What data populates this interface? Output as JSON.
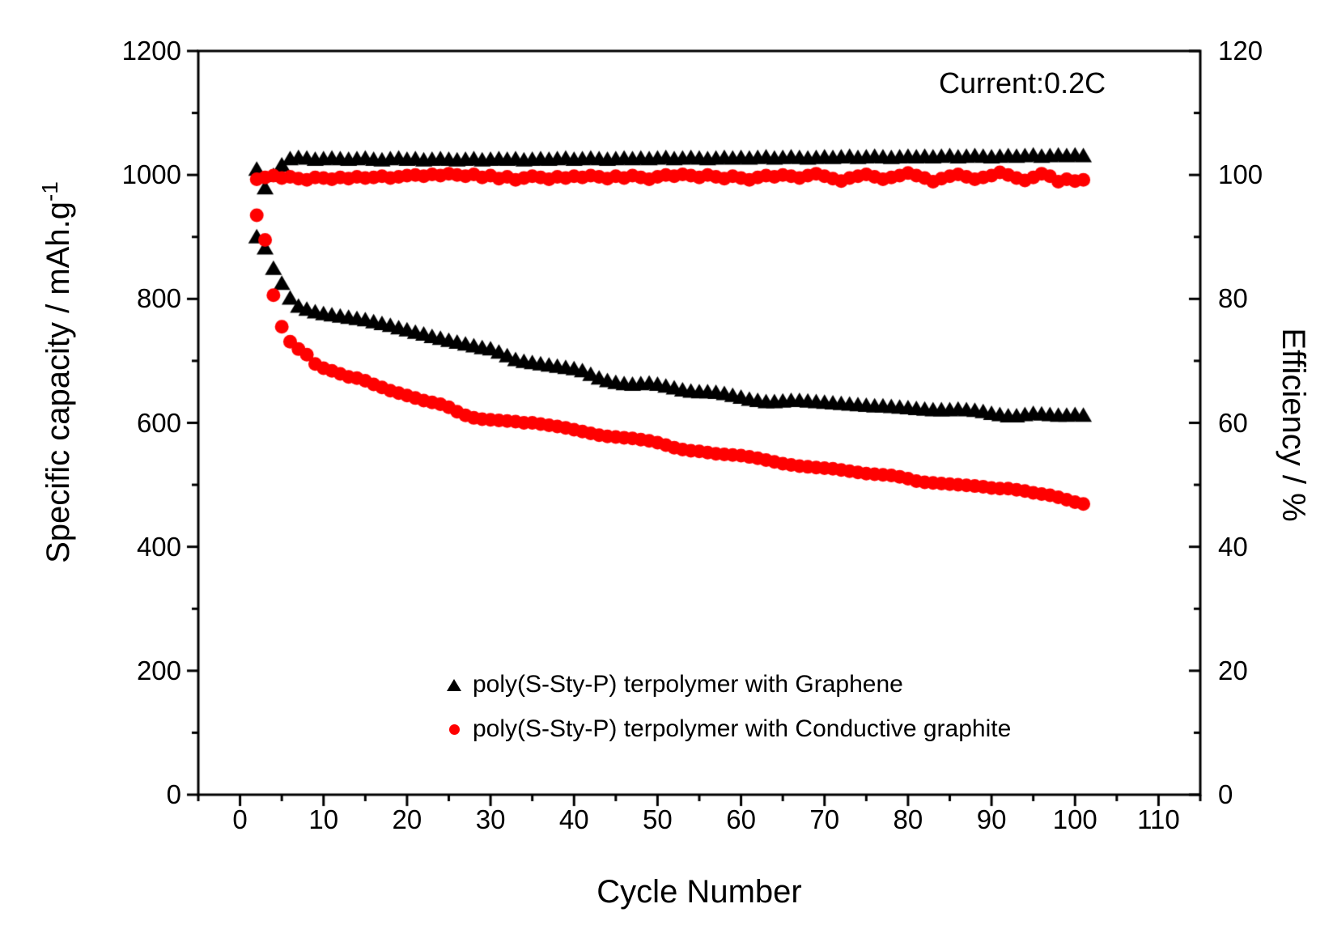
{
  "figure": {
    "annotation": "Current:0.2C",
    "x_axis_title": "Cycle Number",
    "y_left_title_main": "Specific capacity / mAh.g",
    "y_left_title_sup": "-1",
    "y_right_title": "Efficiency / %"
  },
  "legend": {
    "items": [
      {
        "label": "poly(S-Sty-P) terpolymer with Graphene",
        "marker": "triangle-icon",
        "color": "#000000"
      },
      {
        "label": "poly(S-Sty-P) terpolymer with Conductive graphite",
        "marker": "circle-icon",
        "color": "#ff0000"
      }
    ]
  },
  "chart_data": {
    "type": "scatter",
    "title": "",
    "xlabel": "Cycle Number",
    "ylabel_left": "Specific capacity / mAh.g-1",
    "ylabel_right": "Efficiency / %",
    "annotation": "Current:0.2C",
    "grid": false,
    "legend_position": "inside-bottom-center",
    "x_range": [
      -5,
      115
    ],
    "y_left_range": [
      0,
      1200
    ],
    "y_right_range": [
      0,
      120
    ],
    "x_ticks_major": [
      0,
      10,
      20,
      30,
      40,
      50,
      60,
      70,
      80,
      90,
      100,
      110
    ],
    "x_minor_step": 5,
    "y_left_ticks_major": [
      0,
      200,
      400,
      600,
      800,
      1000,
      1200
    ],
    "y_left_minor_step": 100,
    "y_right_ticks_major": [
      0,
      20,
      40,
      60,
      80,
      100,
      120
    ],
    "y_right_minor_step": 10,
    "x": [
      2,
      3,
      4,
      5,
      6,
      7,
      8,
      9,
      10,
      11,
      12,
      13,
      14,
      15,
      16,
      17,
      18,
      19,
      20,
      21,
      22,
      23,
      24,
      25,
      26,
      27,
      28,
      29,
      30,
      31,
      32,
      33,
      34,
      35,
      36,
      37,
      38,
      39,
      40,
      41,
      42,
      43,
      44,
      45,
      46,
      47,
      48,
      49,
      50,
      51,
      52,
      53,
      54,
      55,
      56,
      57,
      58,
      59,
      60,
      61,
      62,
      63,
      64,
      65,
      66,
      67,
      68,
      69,
      70,
      71,
      72,
      73,
      74,
      75,
      76,
      77,
      78,
      79,
      80,
      81,
      82,
      83,
      84,
      85,
      86,
      87,
      88,
      89,
      90,
      91,
      92,
      93,
      94,
      95,
      96,
      97,
      98,
      99,
      100,
      101
    ],
    "series": [
      {
        "name": "poly(S-Sty-P) terpolymer with Graphene - specific capacity",
        "axis": "left",
        "marker": "triangle",
        "color": "#000000",
        "values": [
          900,
          882,
          849,
          825,
          801,
          788,
          783,
          779,
          776,
          774,
          772,
          770,
          768,
          766,
          763,
          760,
          757,
          753,
          750,
          746,
          743,
          739,
          736,
          733,
          730,
          727,
          724,
          721,
          719,
          714,
          708,
          702,
          699,
          697,
          695,
          693,
          691,
          689,
          687,
          684,
          678,
          672,
          668,
          665,
          663,
          662,
          663,
          664,
          662,
          659,
          656,
          653,
          651,
          650,
          650,
          649,
          647,
          644,
          641,
          638,
          636,
          634,
          634,
          635,
          636,
          636,
          635,
          634,
          633,
          632,
          631,
          630,
          629,
          628,
          627,
          627,
          626,
          625,
          624,
          623,
          622,
          621,
          621,
          621,
          622,
          621,
          620,
          618,
          615,
          613,
          611,
          611,
          613,
          615,
          614,
          613,
          612,
          612,
          613,
          612
        ]
      },
      {
        "name": "poly(S-Sty-P) terpolymer with Graphene - efficiency",
        "axis": "right",
        "marker": "triangle",
        "color": "#000000",
        "values": [
          100.9,
          97.9,
          99.9,
          101.6,
          102.6,
          102.8,
          102.7,
          102.5,
          102.6,
          102.7,
          102.6,
          102.5,
          102.6,
          102.7,
          102.5,
          102.4,
          102.6,
          102.7,
          102.5,
          102.6,
          102.4,
          102.5,
          102.6,
          102.5,
          102.4,
          102.5,
          102.6,
          102.4,
          102.5,
          102.6,
          102.5,
          102.6,
          102.4,
          102.5,
          102.6,
          102.5,
          102.6,
          102.7,
          102.5,
          102.6,
          102.7,
          102.6,
          102.5,
          102.6,
          102.7,
          102.6,
          102.7,
          102.6,
          102.7,
          102.8,
          102.6,
          102.7,
          102.8,
          102.7,
          102.6,
          102.7,
          102.8,
          102.7,
          102.8,
          102.7,
          102.8,
          102.9,
          102.7,
          102.8,
          102.9,
          102.8,
          102.7,
          102.8,
          102.9,
          102.8,
          102.9,
          103.0,
          102.8,
          102.9,
          103.0,
          102.9,
          102.8,
          102.9,
          103.0,
          102.9,
          103.0,
          102.9,
          103.0,
          103.1,
          102.9,
          103.0,
          103.1,
          103.0,
          102.9,
          103.0,
          103.1,
          103.0,
          103.1,
          103.2,
          103.0,
          103.1,
          103.2,
          103.1,
          103.2,
          103.1
        ]
      },
      {
        "name": "poly(S-Sty-P) terpolymer with Conductive graphite - specific capacity",
        "axis": "left",
        "marker": "circle",
        "color": "#ff0000",
        "values": [
          935,
          895,
          806,
          755,
          731,
          719,
          710,
          695,
          688,
          684,
          679,
          674,
          672,
          668,
          662,
          657,
          652,
          648,
          644,
          640,
          636,
          633,
          630,
          625,
          618,
          612,
          608,
          606,
          605,
          604,
          603,
          602,
          600,
          600,
          598,
          596,
          594,
          592,
          589,
          586,
          583,
          580,
          578,
          577,
          576,
          575,
          573,
          571,
          568,
          564,
          560,
          557,
          555,
          554,
          552,
          550,
          549,
          548,
          547,
          545,
          543,
          540,
          537,
          534,
          532,
          530,
          529,
          528,
          527,
          526,
          524,
          522,
          520,
          518,
          517,
          516,
          515,
          513,
          510,
          506,
          504,
          503,
          502,
          501,
          500,
          499,
          498,
          497,
          495,
          494,
          494,
          492,
          490,
          487,
          485,
          483,
          480,
          476,
          472,
          469
        ]
      },
      {
        "name": "poly(S-Sty-P) terpolymer with Conductive graphite - efficiency",
        "axis": "right",
        "marker": "circle",
        "color": "#ff0000",
        "values": [
          99.3,
          99.6,
          99.9,
          99.5,
          99.7,
          99.4,
          99.2,
          99.6,
          99.5,
          99.3,
          99.6,
          99.4,
          99.7,
          99.5,
          99.6,
          99.8,
          99.5,
          99.7,
          99.9,
          100.0,
          99.8,
          100.1,
          99.9,
          100.2,
          100.0,
          99.8,
          100.1,
          99.6,
          99.9,
          99.4,
          99.7,
          99.2,
          99.5,
          99.8,
          99.6,
          99.3,
          99.7,
          99.5,
          99.8,
          99.6,
          99.9,
          99.7,
          99.4,
          99.8,
          99.5,
          99.9,
          99.6,
          99.3,
          99.7,
          100.0,
          99.8,
          100.1,
          99.9,
          99.6,
          100.0,
          99.7,
          99.4,
          99.8,
          99.5,
          99.2,
          99.6,
          99.9,
          99.7,
          100.0,
          99.8,
          99.5,
          99.9,
          100.2,
          99.8,
          99.4,
          99.0,
          99.5,
          99.8,
          100.1,
          99.7,
          99.3,
          99.6,
          99.9,
          100.3,
          99.9,
          99.5,
          98.9,
          99.4,
          99.8,
          100.1,
          99.7,
          99.3,
          99.6,
          99.9,
          100.4,
          100.0,
          99.5,
          99.1,
          99.6,
          100.2,
          99.8,
          98.9,
          99.3,
          99.0,
          99.2
        ]
      }
    ]
  }
}
